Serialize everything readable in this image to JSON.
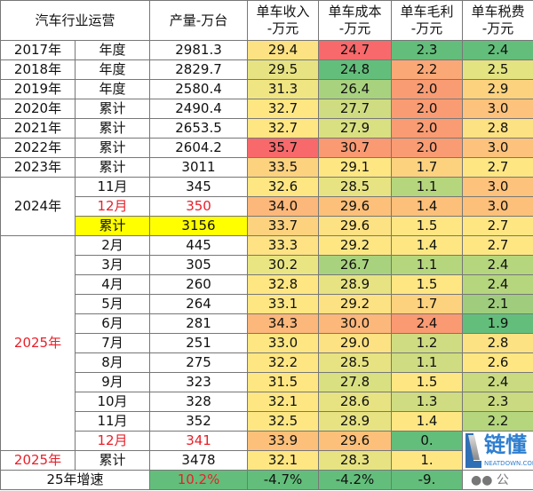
{
  "headers": [
    "汽车行业运营",
    "产量-万台",
    "单车收入\n-万元",
    "单车成本\n-万元",
    "单车毛利\n-万元",
    "单车税费\n-万元"
  ],
  "rows": [
    {
      "year": "2017年",
      "period": "年度",
      "output": "2981.3",
      "cells": [
        [
          "29.4",
          "#fde283"
        ],
        [
          "24.7",
          "#f8696b"
        ],
        [
          "2.3",
          "#63be7b"
        ],
        [
          "2.4",
          "#63be7b"
        ]
      ]
    },
    {
      "year": "2018年",
      "period": "年度",
      "output": "2829.7",
      "cells": [
        [
          "29.5",
          "#e7e383"
        ],
        [
          "24.8",
          "#63be7b"
        ],
        [
          "2.2",
          "#fba877"
        ],
        [
          "2.5",
          "#e3e382"
        ]
      ]
    },
    {
      "year": "2019年",
      "period": "年度",
      "output": "2580.4",
      "cells": [
        [
          "31.3",
          "#f0e583"
        ],
        [
          "26.4",
          "#a9d27f"
        ],
        [
          "2.0",
          "#fa9c73"
        ],
        [
          "2.9",
          "#fdd27f"
        ]
      ]
    },
    {
      "year": "2020年",
      "period": "累计",
      "output": "2490.4",
      "cells": [
        [
          "32.7",
          "#fee783"
        ],
        [
          "27.7",
          "#cfdc81"
        ],
        [
          "2.0",
          "#fa9c73"
        ],
        [
          "3.0",
          "#fdc37c"
        ]
      ]
    },
    {
      "year": "2021年",
      "period": "累计",
      "output": "2653.5",
      "cells": [
        [
          "32.7",
          "#fee783"
        ],
        [
          "27.9",
          "#d9e082"
        ],
        [
          "2.0",
          "#fa9c73"
        ],
        [
          "2.8",
          "#fde283"
        ]
      ]
    },
    {
      "year": "2022年",
      "period": "累计",
      "output": "2604.2",
      "cells": [
        [
          "35.7",
          "#f8696b"
        ],
        [
          "30.7",
          "#fa9a72"
        ],
        [
          "2.0",
          "#fa9c73"
        ],
        [
          "3.0",
          "#fdc37c"
        ]
      ]
    },
    {
      "year": "2023年",
      "period": "累计",
      "output": "3011",
      "cells": [
        [
          "33.5",
          "#fdd27f"
        ],
        [
          "29.1",
          "#fee783"
        ],
        [
          "1.7",
          "#fdd27f"
        ],
        [
          "2.7",
          "#fee783"
        ]
      ]
    }
  ],
  "y2024": {
    "label": "2024年",
    "rows": [
      {
        "period": "11月",
        "output": "345",
        "cells": [
          [
            "32.6",
            "#fee783"
          ],
          [
            "28.5",
            "#e7e383"
          ],
          [
            "1.1",
            "#b5d67d"
          ],
          [
            "3.0",
            "#fdc37c"
          ]
        ]
      },
      {
        "period": "12月",
        "output": "350",
        "red": true,
        "cells": [
          [
            "34.0",
            "#fcb77a"
          ],
          [
            "29.6",
            "#fcc07a"
          ],
          [
            "1.4",
            "#fcc07a"
          ],
          [
            "3.0",
            "#fcc07a"
          ]
        ]
      },
      {
        "period": "累计",
        "output": "3156",
        "highlight": "#ffff00",
        "cells": [
          [
            "33.7",
            "#fdd27f"
          ],
          [
            "29.6",
            "#fde283"
          ],
          [
            "1.5",
            "#fee783"
          ],
          [
            "2.7",
            "#fee783"
          ]
        ]
      }
    ]
  },
  "y2025": {
    "label": "2025年",
    "rows": [
      {
        "period": "2月",
        "output": "445",
        "cells": [
          [
            "33.3",
            "#fee283"
          ],
          [
            "29.2",
            "#fee783"
          ],
          [
            "1.4",
            "#fee783"
          ],
          [
            "2.7",
            "#fee783"
          ]
        ]
      },
      {
        "period": "3月",
        "output": "305",
        "cells": [
          [
            "30.2",
            "#e9e583"
          ],
          [
            "26.7",
            "#a9d27f"
          ],
          [
            "1.1",
            "#b5d67d"
          ],
          [
            "2.4",
            "#b5d67d"
          ]
        ]
      },
      {
        "period": "4月",
        "output": "260",
        "cells": [
          [
            "32.8",
            "#fee783"
          ],
          [
            "28.9",
            "#e7e383"
          ],
          [
            "1.5",
            "#fee783"
          ],
          [
            "2.4",
            "#b5d67d"
          ]
        ]
      },
      {
        "period": "5月",
        "output": "264",
        "cells": [
          [
            "33.1",
            "#fee783"
          ],
          [
            "29.2",
            "#fde283"
          ],
          [
            "1.7",
            "#fdd27f"
          ],
          [
            "2.1",
            "#9fcd7d"
          ]
        ]
      },
      {
        "period": "6月",
        "output": "281",
        "cells": [
          [
            "34.3",
            "#fcb77a"
          ],
          [
            "30.0",
            "#fcb77a"
          ],
          [
            "2.4",
            "#fa9a72"
          ],
          [
            "1.9",
            "#63be7b"
          ]
        ]
      },
      {
        "period": "7月",
        "output": "251",
        "cells": [
          [
            "33.0",
            "#fee783"
          ],
          [
            "29.0",
            "#fde283"
          ],
          [
            "1.2",
            "#cfdc81"
          ],
          [
            "2.8",
            "#fde283"
          ]
        ]
      },
      {
        "period": "8月",
        "output": "275",
        "cells": [
          [
            "32.2",
            "#fee783"
          ],
          [
            "28.5",
            "#e7e383"
          ],
          [
            "1.1",
            "#cfdc81"
          ],
          [
            "2.6",
            "#fee783"
          ]
        ]
      },
      {
        "period": "9月",
        "output": "323",
        "cells": [
          [
            "31.5",
            "#fee783"
          ],
          [
            "27.8",
            "#d9e082"
          ],
          [
            "1.5",
            "#fee783"
          ],
          [
            "2.4",
            "#c9da80"
          ]
        ]
      },
      {
        "period": "10月",
        "output": "328",
        "cells": [
          [
            "32.1",
            "#fee783"
          ],
          [
            "28.6",
            "#e7e383"
          ],
          [
            "1.3",
            "#cfdc81"
          ],
          [
            "2.3",
            "#c9da80"
          ]
        ]
      },
      {
        "period": "11月",
        "output": "352",
        "cells": [
          [
            "32.5",
            "#fee783"
          ],
          [
            "28.9",
            "#e7e383"
          ],
          [
            "1.4",
            "#fee783"
          ],
          [
            "2.2",
            "#b5d67d"
          ]
        ]
      },
      {
        "period": "12月",
        "output": "341",
        "red": true,
        "cells": [
          [
            "33.9",
            "#fcc07a"
          ],
          [
            "29.6",
            "#fcc07a"
          ],
          [
            "0.",
            "#63be7b"
          ],
          [
            "",
            "#fff"
          ]
        ]
      }
    ]
  },
  "total2025": {
    "year": "2025年",
    "period": "累计",
    "output": "3478",
    "cells": [
      [
        "32.1",
        "#fee783"
      ],
      [
        "28.3",
        "#e7e383"
      ],
      [
        "1.",
        "#fee783"
      ],
      [
        "",
        "#fff"
      ]
    ]
  },
  "growth": {
    "label": "25年增速",
    "output": "10.2%",
    "output_color": "#63be7b",
    "cells": [
      [
        "-4.7%",
        "#63be7b"
      ],
      [
        "-4.2%",
        "#63be7b"
      ],
      [
        "-9.",
        "#63be7b"
      ],
      [
        "",
        "#fff"
      ]
    ]
  },
  "watermark": {
    "brand": "链懂",
    "site": "NEATDOWN.COM",
    "wechat": "公"
  }
}
